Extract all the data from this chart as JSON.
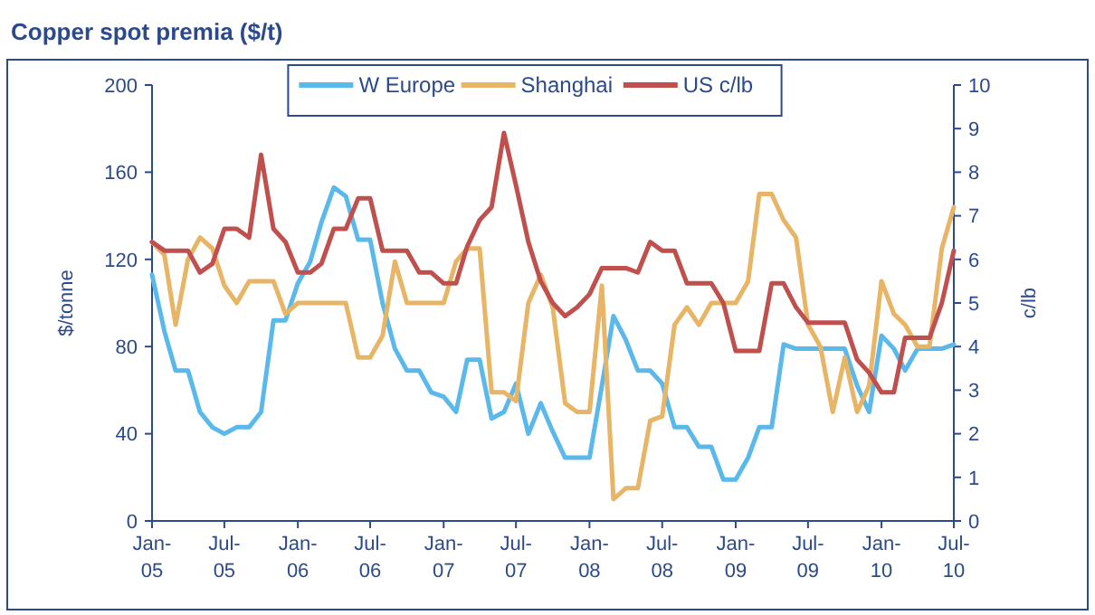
{
  "chart_data": {
    "type": "line",
    "title": "Copper spot premia ($/t)",
    "ylabel": "$/tonne",
    "y2label": "c/lb",
    "x": [
      "2005-01",
      "2005-02",
      "2005-03",
      "2005-04",
      "2005-05",
      "2005-06",
      "2005-07",
      "2005-08",
      "2005-09",
      "2005-10",
      "2005-11",
      "2005-12",
      "2006-01",
      "2006-02",
      "2006-03",
      "2006-04",
      "2006-05",
      "2006-06",
      "2006-07",
      "2006-08",
      "2006-09",
      "2006-10",
      "2006-11",
      "2006-12",
      "2007-01",
      "2007-02",
      "2007-03",
      "2007-04",
      "2007-05",
      "2007-06",
      "2007-07",
      "2007-08",
      "2007-09",
      "2007-10",
      "2007-11",
      "2007-12",
      "2008-01",
      "2008-02",
      "2008-03",
      "2008-04",
      "2008-05",
      "2008-06",
      "2008-07",
      "2008-08",
      "2008-09",
      "2008-10",
      "2008-11",
      "2008-12",
      "2009-01",
      "2009-02",
      "2009-03",
      "2009-04",
      "2009-05",
      "2009-06",
      "2009-07",
      "2009-08",
      "2009-09",
      "2009-10",
      "2009-11",
      "2009-12",
      "2010-01",
      "2010-02",
      "2010-03",
      "2010-04",
      "2010-05",
      "2010-06",
      "2010-07"
    ],
    "series": [
      {
        "name": "W Europe",
        "color": "#5bb8ea",
        "values": [
          113,
          87,
          69,
          69,
          50,
          43,
          40,
          43,
          43,
          50,
          92,
          92,
          109,
          119,
          137,
          153,
          149,
          129,
          129,
          100,
          79,
          69,
          69,
          59,
          57,
          50,
          74,
          74,
          47,
          50,
          63,
          40,
          54,
          41,
          29,
          29,
          29,
          62,
          94,
          83,
          69,
          69,
          63,
          43,
          43,
          34,
          34,
          19,
          19,
          29,
          43,
          43,
          81,
          79,
          79,
          79,
          79,
          79,
          62,
          50,
          85,
          79,
          69,
          79,
          79,
          79,
          81
        ]
      },
      {
        "name": "Shanghai",
        "color": "#e8b466",
        "values": [
          128,
          122,
          90,
          120,
          130,
          125,
          108,
          100,
          110,
          110,
          110,
          95,
          100,
          100,
          100,
          100,
          100,
          75,
          75,
          85,
          119,
          100,
          100,
          100,
          100,
          119,
          125,
          125,
          59,
          59,
          55,
          100,
          113,
          98,
          54,
          50,
          50,
          108,
          10,
          15,
          15,
          46,
          48,
          90,
          98,
          90,
          100,
          100,
          100,
          110,
          150,
          150,
          138,
          130,
          90,
          80,
          50,
          75,
          50,
          62,
          110,
          95,
          90,
          80,
          80,
          125,
          144
        ]
      },
      {
        "name": "US c/lb",
        "color": "#c0504d",
        "axis": "y2",
        "values": [
          6.4,
          6.2,
          6.2,
          6.2,
          5.7,
          5.9,
          6.7,
          6.7,
          6.5,
          8.4,
          6.7,
          6.4,
          5.7,
          5.7,
          5.9,
          6.7,
          6.7,
          7.4,
          7.4,
          6.2,
          6.2,
          6.2,
          5.7,
          5.7,
          5.45,
          5.45,
          6.3,
          6.9,
          7.2,
          8.9,
          7.7,
          6.4,
          5.5,
          5.0,
          4.7,
          4.9,
          5.2,
          5.8,
          5.8,
          5.8,
          5.7,
          6.4,
          6.2,
          6.2,
          5.45,
          5.45,
          5.45,
          5.0,
          3.9,
          3.9,
          3.9,
          5.45,
          5.45,
          4.9,
          4.55,
          4.55,
          4.55,
          4.55,
          3.7,
          3.4,
          2.95,
          2.95,
          4.2,
          4.2,
          4.2,
          5.0,
          6.2
        ]
      }
    ],
    "xlim": [
      "2005-01",
      "2010-07"
    ],
    "xticks": [
      {
        "value": "2005-01",
        "label": "Jan-05"
      },
      {
        "value": "2005-07",
        "label": "Jul-05"
      },
      {
        "value": "2006-01",
        "label": "Jan-06"
      },
      {
        "value": "2006-07",
        "label": "Jul-06"
      },
      {
        "value": "2007-01",
        "label": "Jan-07"
      },
      {
        "value": "2007-07",
        "label": "Jul-07"
      },
      {
        "value": "2008-01",
        "label": "Jan-08"
      },
      {
        "value": "2008-07",
        "label": "Jul-08"
      },
      {
        "value": "2009-01",
        "label": "Jan-09"
      },
      {
        "value": "2009-07",
        "label": "Jul-09"
      },
      {
        "value": "2010-01",
        "label": "Jan-10"
      },
      {
        "value": "2010-07",
        "label": "Jul-10"
      }
    ],
    "ylim": [
      0,
      200
    ],
    "yticks": [
      0,
      40,
      80,
      120,
      160,
      200
    ],
    "y2lim": [
      0,
      10
    ],
    "y2ticks": [
      0,
      1,
      2,
      3,
      4,
      5,
      6,
      7,
      8,
      9,
      10
    ],
    "legend": "top",
    "grid": false,
    "marker": "none",
    "line_style": "solid"
  }
}
